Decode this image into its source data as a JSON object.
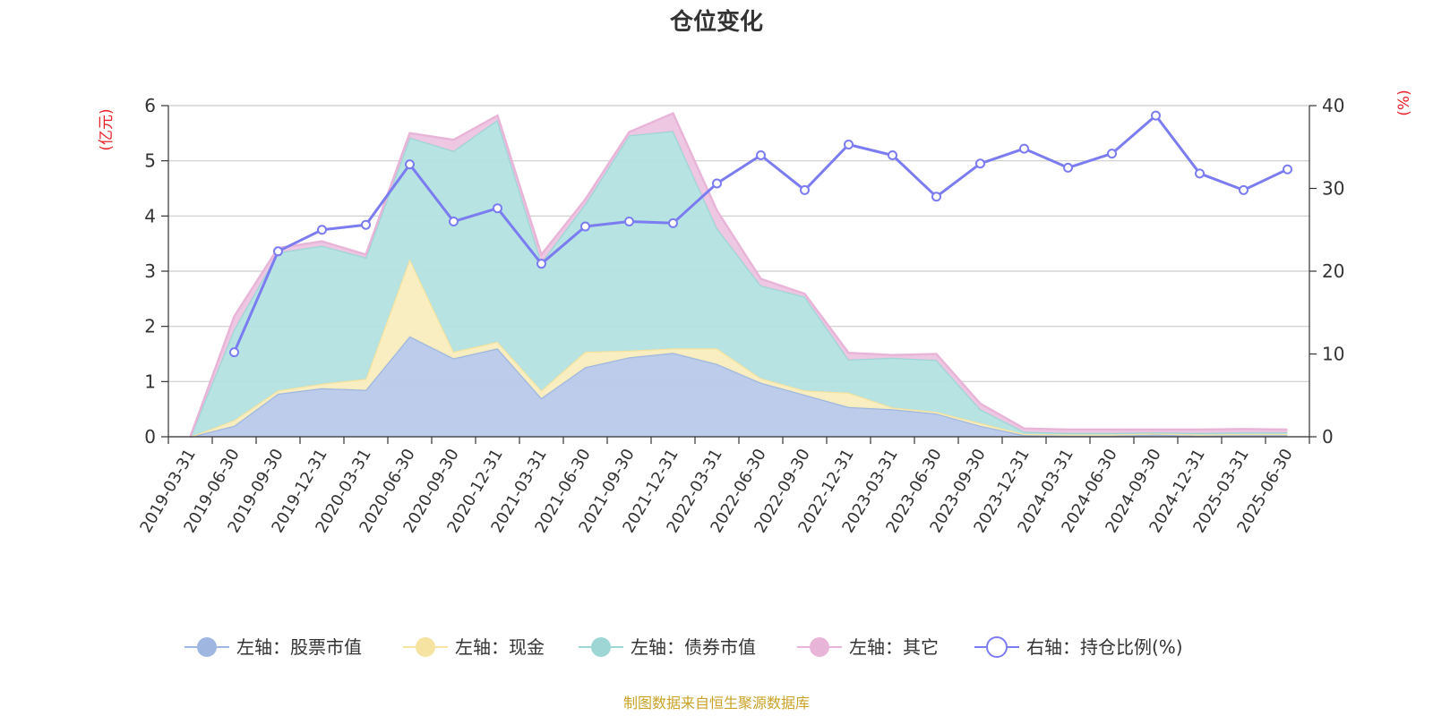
{
  "chart_data": {
    "type": "area",
    "title": "仓位变化",
    "left_axis": {
      "unit": "(亿元)",
      "ylim": [
        0,
        6
      ],
      "ticks": [
        "0",
        "1",
        "2",
        "3",
        "4",
        "5",
        "6"
      ]
    },
    "right_axis": {
      "unit": "(%)",
      "ylim": [
        0,
        40
      ],
      "ticks": [
        "0",
        "10",
        "20",
        "30",
        "40"
      ]
    },
    "categories": [
      "2019-03-31",
      "2019-06-30",
      "2019-09-30",
      "2019-12-31",
      "2020-03-31",
      "2020-06-30",
      "2020-09-30",
      "2020-12-31",
      "2021-03-31",
      "2021-06-30",
      "2021-09-30",
      "2021-12-31",
      "2022-03-31",
      "2022-06-30",
      "2022-09-30",
      "2022-12-31",
      "2023-03-31",
      "2023-06-30",
      "2023-09-30",
      "2023-12-31",
      "2024-03-31",
      "2024-06-30",
      "2024-09-30",
      "2024-12-31",
      "2025-03-31",
      "2025-06-30"
    ],
    "stacked": true,
    "series": [
      {
        "name": "左轴：股票市值",
        "axis": "left",
        "color": "#9fb7e0",
        "fill": "#b8c9e9",
        "values": [
          0,
          0.2,
          0.78,
          0.88,
          0.85,
          1.82,
          1.42,
          1.6,
          0.7,
          1.26,
          1.44,
          1.52,
          1.32,
          0.98,
          0.76,
          0.54,
          0.5,
          0.42,
          0.2,
          0.03,
          0.02,
          0.02,
          0.04,
          0.02,
          0.03,
          0.03
        ]
      },
      {
        "name": "左轴：现金",
        "axis": "left",
        "color": "#f6e3a1",
        "fill": "#f8edbe",
        "values": [
          0,
          0.1,
          0.06,
          0.08,
          0.2,
          1.4,
          0.12,
          0.12,
          0.14,
          0.28,
          0.12,
          0.08,
          0.28,
          0.08,
          0.08,
          0.26,
          0.03,
          0.03,
          0.05,
          0.02,
          0.02,
          0.02,
          0.02,
          0.02,
          0.02,
          0.02
        ]
      },
      {
        "name": "左轴：债券市值",
        "axis": "left",
        "color": "#9ed6d6",
        "fill": "#b3e1e1",
        "values": [
          0,
          1.65,
          2.5,
          2.5,
          2.2,
          2.2,
          3.64,
          4.02,
          2.32,
          2.68,
          3.9,
          3.94,
          2.18,
          1.68,
          1.7,
          0.6,
          0.9,
          0.94,
          0.25,
          0.04,
          0.03,
          0.03,
          0.02,
          0.03,
          0.03,
          0.03
        ]
      },
      {
        "name": "左轴：其它",
        "axis": "left",
        "color": "#e8b5d9",
        "fill": "#edc5e2",
        "values": [
          0,
          0.23,
          0.08,
          0.08,
          0.05,
          0.08,
          0.2,
          0.08,
          0.14,
          0.08,
          0.06,
          0.32,
          0.32,
          0.12,
          0.05,
          0.12,
          0.05,
          0.11,
          0.1,
          0.06,
          0.06,
          0.06,
          0.05,
          0.06,
          0.06,
          0.05
        ]
      },
      {
        "name": "右轴：持仓比例(%)",
        "axis": "right",
        "type": "line",
        "color": "#7b7cf0",
        "values": [
          null,
          10.2,
          22.4,
          25,
          25.6,
          32.9,
          26,
          27.6,
          20.9,
          25.4,
          26,
          25.8,
          30.6,
          34,
          29.8,
          35.3,
          34,
          29,
          33,
          34.8,
          32.5,
          34.2,
          38.8,
          31.8,
          29.8,
          32.3
        ]
      }
    ],
    "grid": true,
    "legend_position": "bottom"
  },
  "source": "制图数据来自恒生聚源数据库"
}
